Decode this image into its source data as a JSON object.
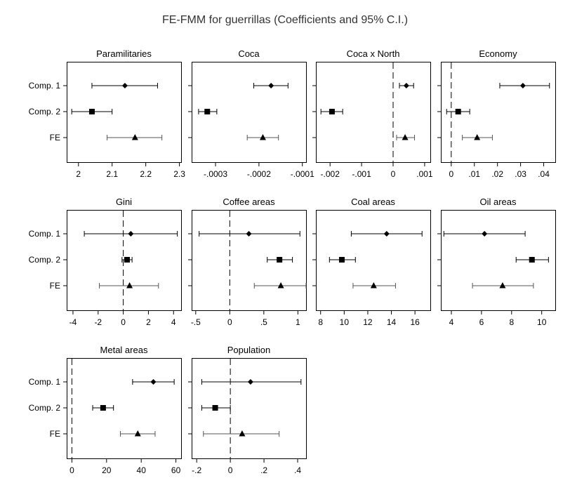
{
  "title": "FE-FMM for guerrillas (Coefficients and 95% C.I.)",
  "row_labels": [
    "Comp. 1",
    "Comp. 2",
    "FE"
  ],
  "chart_data": [
    {
      "type": "scatter",
      "title": "Paramilitaries",
      "xlim": [
        1.965,
        2.305
      ],
      "xticks": [
        2,
        2.1,
        2.2,
        2.3
      ],
      "xtick_labels": [
        "2",
        "2.1",
        "2.2",
        "2.3"
      ],
      "zero_line": false,
      "series": [
        {
          "name": "Comp. 1",
          "marker": "diamond",
          "value": 2.138,
          "lo": 2.04,
          "hi": 2.235
        },
        {
          "name": "Comp. 2",
          "marker": "square",
          "value": 2.04,
          "lo": 1.98,
          "hi": 2.1
        },
        {
          "name": "FE",
          "marker": "triangle",
          "value": 2.168,
          "lo": 2.085,
          "hi": 2.248
        }
      ]
    },
    {
      "type": "scatter",
      "title": "Coca",
      "xlim": [
        -0.000355,
        -9.15e-05
      ],
      "xticks": [
        -0.0003,
        -0.0002,
        -0.0001
      ],
      "xtick_labels": [
        "-.0003",
        "-.0002",
        "-.0001"
      ],
      "zero_line": false,
      "series": [
        {
          "name": "Comp. 1",
          "marker": "diamond",
          "value": -0.000172,
          "lo": -0.000212,
          "hi": -0.000133
        },
        {
          "name": "Comp. 2",
          "marker": "square",
          "value": -0.000319,
          "lo": -0.000339,
          "hi": -0.000297
        },
        {
          "name": "FE",
          "marker": "triangle",
          "value": -0.000191,
          "lo": -0.000227,
          "hi": -0.000155
        }
      ]
    },
    {
      "type": "scatter",
      "title": "Coca x North",
      "xlim": [
        -0.00245,
        0.00118
      ],
      "xticks": [
        -0.002,
        -0.001,
        0,
        0.001
      ],
      "xtick_labels": [
        "-.002",
        "-.001",
        "0",
        ".001"
      ],
      "zero_line": true,
      "series": [
        {
          "name": "Comp. 1",
          "marker": "diamond",
          "value": 0.00042,
          "lo": 0.0002,
          "hi": 0.00065
        },
        {
          "name": "Comp. 2",
          "marker": "square",
          "value": -0.00194,
          "lo": -0.00229,
          "hi": -0.0016
        },
        {
          "name": "FE",
          "marker": "triangle",
          "value": 0.00038,
          "lo": 0.00011,
          "hi": 0.00068
        }
      ]
    },
    {
      "type": "scatter",
      "title": "Economy",
      "xlim": [
        -0.0045,
        0.045
      ],
      "xticks": [
        0,
        0.01,
        0.02,
        0.03,
        0.04
      ],
      "xtick_labels": [
        "0",
        ".01",
        ".02",
        ".03",
        ".04"
      ],
      "zero_line": true,
      "series": [
        {
          "name": "Comp. 1",
          "marker": "diamond",
          "value": 0.031,
          "lo": 0.021,
          "hi": 0.0425
        },
        {
          "name": "Comp. 2",
          "marker": "square",
          "value": 0.003,
          "lo": -0.002,
          "hi": 0.008
        },
        {
          "name": "FE",
          "marker": "triangle",
          "value": 0.0112,
          "lo": 0.0048,
          "hi": 0.0178
        }
      ]
    },
    {
      "type": "scatter",
      "title": "Gini",
      "xlim": [
        -4.5,
        4.6
      ],
      "xticks": [
        -4,
        -2,
        0,
        2,
        4
      ],
      "xtick_labels": [
        "-4",
        "-2",
        "0",
        "2",
        "4"
      ],
      "zero_line": true,
      "series": [
        {
          "name": "Comp. 1",
          "marker": "diamond",
          "value": 0.6,
          "lo": -3.1,
          "hi": 4.3
        },
        {
          "name": "Comp. 2",
          "marker": "square",
          "value": 0.3,
          "lo": -0.1,
          "hi": 0.7
        },
        {
          "name": "FE",
          "marker": "triangle",
          "value": 0.5,
          "lo": -1.9,
          "hi": 2.8
        }
      ]
    },
    {
      "type": "scatter",
      "title": "Coffee areas",
      "xlim": [
        -0.56,
        1.12
      ],
      "xticks": [
        -0.5,
        0,
        0.5,
        1
      ],
      "xtick_labels": [
        "-.5",
        "0",
        ".5",
        "1"
      ],
      "zero_line": true,
      "series": [
        {
          "name": "Comp. 1",
          "marker": "diamond",
          "value": 0.28,
          "lo": -0.45,
          "hi": 1.03
        },
        {
          "name": "Comp. 2",
          "marker": "square",
          "value": 0.73,
          "lo": 0.55,
          "hi": 0.92
        },
        {
          "name": "FE",
          "marker": "triangle",
          "value": 0.75,
          "lo": 0.36,
          "hi": 1.12
        }
      ]
    },
    {
      "type": "scatter",
      "title": "Coal areas",
      "xlim": [
        7.6,
        17.3
      ],
      "xticks": [
        8,
        10,
        12,
        14,
        16
      ],
      "xtick_labels": [
        "8",
        "10",
        "12",
        "14",
        "16"
      ],
      "zero_line": false,
      "series": [
        {
          "name": "Comp. 1",
          "marker": "diamond",
          "value": 13.6,
          "lo": 10.6,
          "hi": 16.6
        },
        {
          "name": "Comp. 2",
          "marker": "square",
          "value": 9.8,
          "lo": 8.75,
          "hi": 10.95
        },
        {
          "name": "FE",
          "marker": "triangle",
          "value": 12.5,
          "lo": 10.75,
          "hi": 14.35
        }
      ]
    },
    {
      "type": "scatter",
      "title": "Oil areas",
      "xlim": [
        3.3,
        10.9
      ],
      "xticks": [
        4,
        6,
        8,
        10
      ],
      "xtick_labels": [
        "4",
        "6",
        "8",
        "10"
      ],
      "zero_line": false,
      "series": [
        {
          "name": "Comp. 1",
          "marker": "diamond",
          "value": 6.2,
          "lo": 3.5,
          "hi": 8.9
        },
        {
          "name": "Comp. 2",
          "marker": "square",
          "value": 9.35,
          "lo": 8.3,
          "hi": 10.45
        },
        {
          "name": "FE",
          "marker": "triangle",
          "value": 7.4,
          "lo": 5.4,
          "hi": 9.45
        }
      ]
    },
    {
      "type": "scatter",
      "title": "Metal areas",
      "xlim": [
        -3,
        63
      ],
      "xticks": [
        0,
        20,
        40,
        60
      ],
      "xtick_labels": [
        "0",
        "20",
        "40",
        "60"
      ],
      "zero_line": true,
      "series": [
        {
          "name": "Comp. 1",
          "marker": "diamond",
          "value": 47,
          "lo": 35,
          "hi": 59
        },
        {
          "name": "Comp. 2",
          "marker": "square",
          "value": 18,
          "lo": 12,
          "hi": 24
        },
        {
          "name": "FE",
          "marker": "triangle",
          "value": 38,
          "lo": 28,
          "hi": 48
        }
      ]
    },
    {
      "type": "scatter",
      "title": "Population",
      "xlim": [
        -0.23,
        0.45
      ],
      "xticks": [
        -0.2,
        0,
        0.2,
        0.4
      ],
      "xtick_labels": [
        "-.2",
        "0",
        ".2",
        ".4"
      ],
      "zero_line": true,
      "series": [
        {
          "name": "Comp. 1",
          "marker": "diamond",
          "value": 0.12,
          "lo": -0.17,
          "hi": 0.42
        },
        {
          "name": "Comp. 2",
          "marker": "square",
          "value": -0.09,
          "lo": -0.17,
          "hi": 0.0
        },
        {
          "name": "FE",
          "marker": "triangle",
          "value": 0.07,
          "lo": -0.16,
          "hi": 0.29
        }
      ]
    }
  ]
}
